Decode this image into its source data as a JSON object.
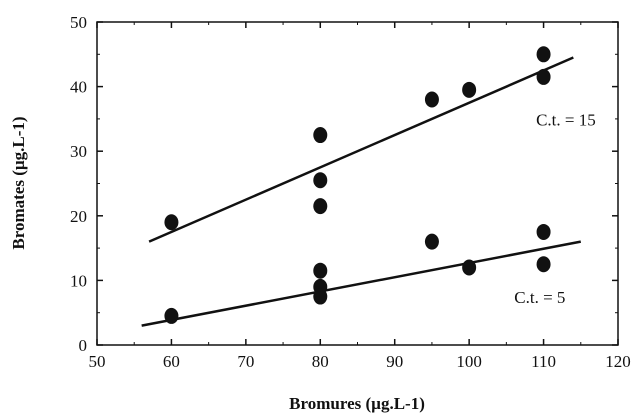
{
  "chart_data": {
    "type": "scatter",
    "xlabel": "Bromures (µg.L-1)",
    "ylabel": "Bromates (µg.L-1)",
    "xlim": [
      50,
      120
    ],
    "ylim": [
      0,
      50
    ],
    "x_ticks": [
      50,
      60,
      70,
      80,
      90,
      100,
      110,
      120
    ],
    "y_ticks": [
      0,
      10,
      20,
      30,
      40,
      50
    ],
    "grid": false,
    "series": [
      {
        "name": "C.t. = 15",
        "points": [
          {
            "x": 60,
            "y": 19
          },
          {
            "x": 80,
            "y": 32.5
          },
          {
            "x": 80,
            "y": 25.5
          },
          {
            "x": 80,
            "y": 21.5
          },
          {
            "x": 95,
            "y": 38
          },
          {
            "x": 100,
            "y": 39.5
          },
          {
            "x": 110,
            "y": 45
          },
          {
            "x": 110,
            "y": 41.5
          }
        ],
        "fit_line": [
          [
            57,
            16
          ],
          [
            114,
            44.5
          ]
        ]
      },
      {
        "name": "C.t. = 5",
        "points": [
          {
            "x": 60,
            "y": 4.5
          },
          {
            "x": 80,
            "y": 11.5
          },
          {
            "x": 80,
            "y": 9
          },
          {
            "x": 80,
            "y": 7.5
          },
          {
            "x": 95,
            "y": 16
          },
          {
            "x": 100,
            "y": 12
          },
          {
            "x": 110,
            "y": 17.5
          },
          {
            "x": 110,
            "y": 12.5
          }
        ],
        "fit_line": [
          [
            56,
            3
          ],
          [
            115,
            16
          ]
        ]
      }
    ],
    "annotations": [
      {
        "text": "C.t. = 15",
        "x": 113,
        "y": 34
      },
      {
        "text": "C.t. = 5",
        "x": 109.5,
        "y": 6.5
      }
    ],
    "colors": {
      "ink": "#111111",
      "background": "#ffffff"
    }
  }
}
